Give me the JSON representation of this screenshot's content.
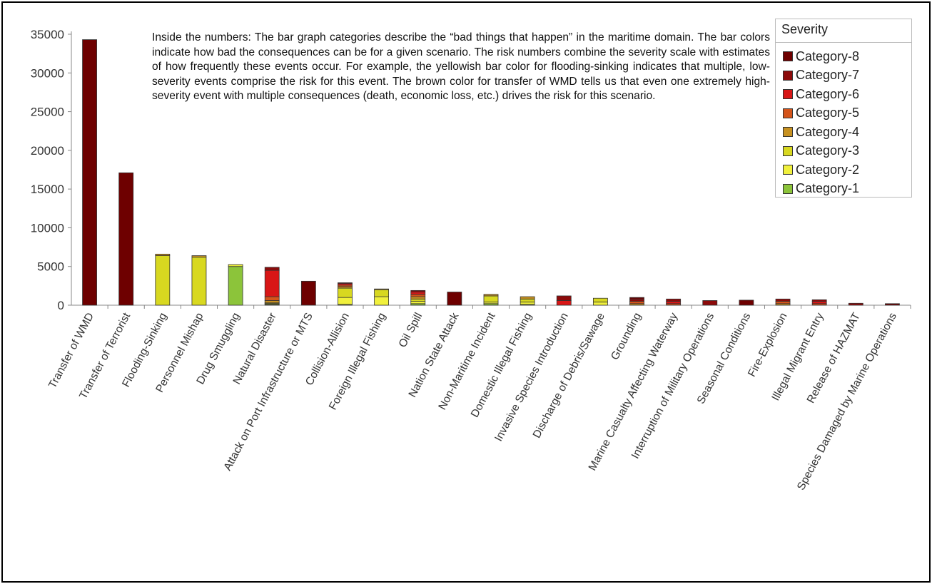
{
  "annotation": "Inside the numbers: The bar graph categories describe the “bad things that happen” in the maritime domain. The bar colors indicate how bad the consequences can be for a given scenario. The risk numbers combine the severity scale with estimates of how frequently these events occur. For example, the yellowish bar color for flooding-sinking indicates that multiple, low-severity events comprise the risk for this event. The brown color for transfer of WMD tells us that even one extremely high-severity event with multiple consequences (death, economic loss, etc.) drives the risk for this scenario.",
  "legend": {
    "title": "Severity",
    "placement": "top-right"
  },
  "colors": {
    "Category-8": "#6e0000",
    "Category-7": "#8c0a0a",
    "Category-6": "#d81616",
    "Category-5": "#d4541a",
    "Category-4": "#c79120",
    "Category-3": "#d8d820",
    "Category-2": "#f0f03c",
    "Category-1": "#8cc43a"
  },
  "chart_data": {
    "type": "bar",
    "stacked": true,
    "title": "",
    "xlabel": "",
    "ylabel": "",
    "ylim": [
      0,
      35000
    ],
    "yticks": [
      "0",
      "5000",
      "10000",
      "15000",
      "20000",
      "25000",
      "30000",
      "35000"
    ],
    "grid": false,
    "categories": [
      "Transfer of WMD",
      "Transfer of Terrorist",
      "Flooding-Sinking",
      "Personnel Mishap",
      "Drug Smuggling",
      "Natural Disaster",
      "Attack on Port Infrastructure or MTS",
      "Collision-Allision",
      "Foreign Illegal Fishing",
      "Oil Spill",
      "Nation State Attack",
      "Non-Maritime Incident",
      "Domestic Illegal Fishing",
      "Invasive Species Introduction",
      "Discharge of Debris/Sawage",
      "Grounding",
      "Marine Casualty Affecting Waterway",
      "Interruption of Military Operations",
      "Seasonal Conditions",
      "Fire-Explosion",
      "Illegal Migrant Entry",
      "Release of HAZMAT",
      "Species Damaged by Marine Operations"
    ],
    "series": [
      {
        "name": "Category-1",
        "values": [
          0,
          0,
          0,
          0,
          5000,
          100,
          0,
          100,
          0,
          200,
          0,
          200,
          100,
          0,
          0,
          0,
          0,
          0,
          0,
          0,
          0,
          0,
          0
        ]
      },
      {
        "name": "Category-2",
        "values": [
          0,
          0,
          0,
          0,
          250,
          100,
          0,
          900,
          1100,
          300,
          0,
          200,
          300,
          0,
          400,
          0,
          0,
          0,
          0,
          0,
          0,
          0,
          0
        ]
      },
      {
        "name": "Category-3",
        "values": [
          0,
          0,
          6400,
          6200,
          0,
          100,
          0,
          1200,
          900,
          300,
          0,
          800,
          400,
          0,
          500,
          0,
          0,
          0,
          0,
          0,
          0,
          0,
          0
        ]
      },
      {
        "name": "Category-4",
        "values": [
          0,
          0,
          200,
          200,
          0,
          300,
          0,
          200,
          100,
          300,
          0,
          200,
          300,
          0,
          0,
          200,
          0,
          0,
          0,
          200,
          0,
          0,
          0
        ]
      },
      {
        "name": "Category-5",
        "values": [
          0,
          0,
          0,
          0,
          0,
          500,
          0,
          200,
          0,
          300,
          0,
          0,
          0,
          0,
          0,
          300,
          200,
          0,
          0,
          300,
          200,
          0,
          0
        ]
      },
      {
        "name": "Category-6",
        "values": [
          0,
          0,
          0,
          0,
          0,
          3400,
          0,
          200,
          0,
          300,
          0,
          0,
          0,
          600,
          0,
          0,
          300,
          0,
          0,
          0,
          300,
          0,
          0
        ]
      },
      {
        "name": "Category-7",
        "values": [
          0,
          0,
          0,
          0,
          0,
          400,
          0,
          100,
          0,
          200,
          0,
          0,
          0,
          600,
          0,
          300,
          300,
          600,
          0,
          300,
          200,
          250,
          0
        ]
      },
      {
        "name": "Category-8",
        "values": [
          34300,
          17100,
          0,
          0,
          0,
          0,
          3100,
          0,
          0,
          0,
          1700,
          0,
          0,
          0,
          0,
          200,
          0,
          0,
          650,
          0,
          0,
          0,
          200
        ]
      }
    ]
  }
}
